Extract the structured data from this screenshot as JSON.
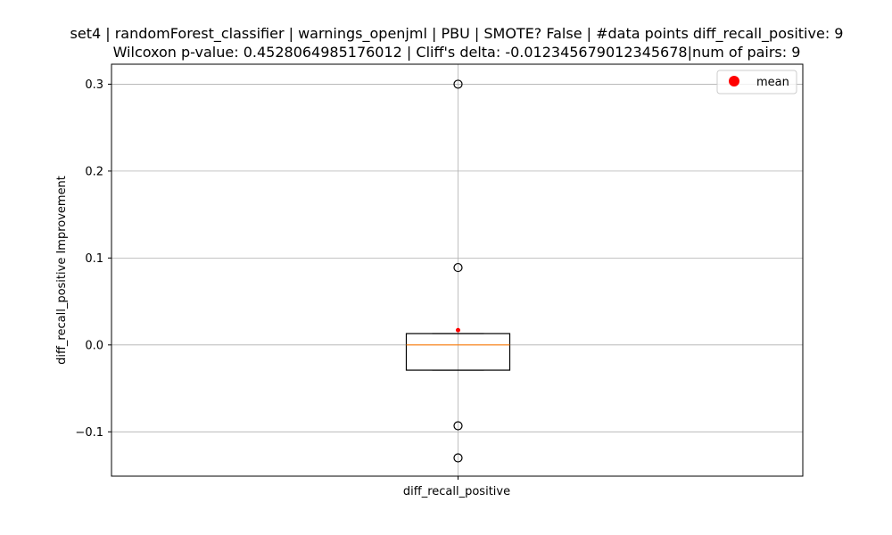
{
  "chart_data": {
    "type": "box",
    "title": "set4 | randomForest_classifier | warnings_openjml | PBU | SMOTE? False | #data points diff_recall_positive: 9",
    "subtitle": "Wilcoxon p-value: 0.4528064985176012 | Cliff's delta: -0.012345679012345678|num of pairs: 9",
    "ylabel": "diff_recall_positive Improvement",
    "categories": [
      "diff_recall_positive"
    ],
    "ylim": [
      -0.151,
      0.323
    ],
    "yticks": [
      0.3,
      0.2,
      0.1,
      0.0,
      -0.1
    ],
    "ytick_labels": [
      "0.3",
      "0.2",
      "0.1",
      "0.0",
      "−0.1"
    ],
    "grid": true,
    "legend": {
      "position": "top-right",
      "entries": [
        {
          "label": "mean",
          "color": "#ff0000",
          "marker": "circle"
        }
      ]
    },
    "box": {
      "q1": -0.029,
      "median": 0.0,
      "q3": 0.013,
      "whisker_low": -0.029,
      "whisker_high": 0.013,
      "mean": 0.017,
      "fliers": [
        0.3,
        0.089,
        -0.093,
        -0.13
      ]
    },
    "colors": {
      "median": "#ff7f0e",
      "mean": "#ff0000",
      "grid": "#b0b0b0"
    }
  }
}
